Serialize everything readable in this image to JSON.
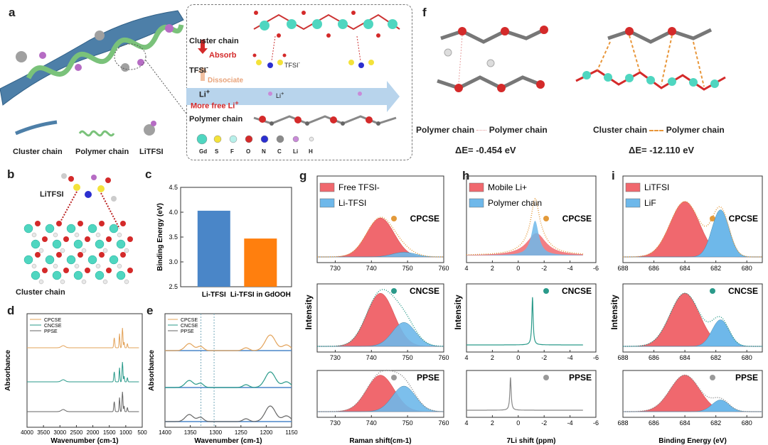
{
  "panels": {
    "a": "a",
    "b": "b",
    "c": "c",
    "d": "d",
    "e": "e",
    "f": "f",
    "g": "g",
    "h": "h",
    "i": "i"
  },
  "panel_a": {
    "legend_cluster": "Cluster chain",
    "legend_polymer": "Polymer chain",
    "legend_litfsi": "LiTFSI",
    "inset_cluster": "Cluster chain",
    "inset_absorb": "Absorb",
    "inset_tfsi": "TFSI",
    "inset_tfsi_sup": "-",
    "inset_tfsi_right": "TFSI",
    "inset_dissociate": "Dissociate",
    "inset_li": "Li",
    "inset_li_sup": "+",
    "inset_li_mid": "Li",
    "inset_more_free": "More free Li",
    "inset_polymer": "Polymer chain",
    "atoms": [
      "Gd",
      "S",
      "F",
      "O",
      "N",
      "C",
      "Li",
      "H"
    ],
    "atom_colors": [
      "#4fd6c0",
      "#f3e23a",
      "#b7f0ea",
      "#d42a2a",
      "#2b2fd0",
      "#8a8a8a",
      "#c98ad8",
      "#e8e8e8"
    ]
  },
  "panel_b": {
    "litfsi": "LiTFSI",
    "cluster": "Cluster chain"
  },
  "panel_c": {
    "chart_data": {
      "type": "bar",
      "categories": [
        "Li-TFSI",
        "Li-TFSI in GdOOH"
      ],
      "values": [
        4.03,
        3.47
      ],
      "colors": [
        "#4a86c8",
        "#ff7f0e"
      ],
      "ylabel": "Binding Energy (eV)",
      "ylim": [
        2.5,
        4.5
      ],
      "yticks": [
        "2.5",
        "3.0",
        "3.5",
        "4.0",
        "4.5"
      ]
    }
  },
  "panel_d": {
    "chart_data": {
      "type": "line",
      "series": [
        {
          "name": "CPCSE",
          "color": "#e3a35a"
        },
        {
          "name": "CNCSE",
          "color": "#2a9a8a"
        },
        {
          "name": "PPSE",
          "color": "#666666"
        }
      ],
      "xlabel": "Wavenumber (cm-1)",
      "ylabel": "Absorbance",
      "xticks": [
        "4000",
        "3500",
        "3000",
        "2500",
        "2000",
        "1500",
        "1000",
        "500"
      ],
      "xlim": [
        4000,
        500
      ]
    }
  },
  "panel_e": {
    "chart_data": {
      "type": "line",
      "series": [
        {
          "name": "CPCSE",
          "color": "#e3a35a"
        },
        {
          "name": "CNCSE",
          "color": "#2a9a8a"
        },
        {
          "name": "PPSE",
          "color": "#666666"
        }
      ],
      "xlabel": "Wavenumber (cm-1)",
      "ylabel": "Absorbance",
      "xticks": [
        "1400",
        "1350",
        "1300",
        "1250",
        "1200",
        "1150"
      ],
      "xlim": [
        1400,
        1150
      ]
    }
  },
  "panel_f": {
    "left_caption_a": "Polymer chain",
    "left_caption_b": "Polymer chain",
    "right_caption_a": "Cluster chain",
    "right_caption_b": "Polymer chain",
    "left_energy": "ΔE= -0.454 eV",
    "right_energy": "ΔE= -12.110 eV"
  },
  "panel_g": {
    "chart_data": {
      "type": "area",
      "legend": [
        {
          "name": "Free TFSI-",
          "color": "#f0686e"
        },
        {
          "name": "Li-TFSI",
          "color": "#6eb8ea"
        }
      ],
      "subplots": [
        "CPCSE",
        "CNCSE",
        "PPSE"
      ],
      "xticks": [
        "730",
        "740",
        "750",
        "760"
      ],
      "xlim": [
        725,
        760
      ],
      "xlabel": "Raman shift(cm-1)",
      "ylabel": "Intensity",
      "fits": [
        {
          "free_center": 742.5,
          "li_center": 749
        },
        {
          "free_center": 742.5,
          "li_center": 749
        },
        {
          "free_center": 742.5,
          "li_center": 749
        }
      ]
    }
  },
  "panel_h": {
    "chart_data": {
      "type": "line",
      "legend": [
        {
          "name": "Mobile Li+",
          "color": "#f0686e"
        },
        {
          "name": "Polymer chain",
          "color": "#6eb8ea"
        }
      ],
      "subplots": [
        "CPCSE",
        "CNCSE",
        "PPSE"
      ],
      "xticks": [
        "4",
        "2",
        "0",
        "-2",
        "-4",
        "-6"
      ],
      "xlim": [
        4,
        -6
      ],
      "xlabel": "7Li shift (ppm)",
      "ylabel": "Intensity",
      "peak_centers": [
        -1.4,
        -1.1,
        0.6
      ]
    }
  },
  "panel_i": {
    "chart_data": {
      "type": "area",
      "legend": [
        {
          "name": "LiTFSI",
          "color": "#f0686e"
        },
        {
          "name": "LiF",
          "color": "#6eb8ea"
        }
      ],
      "subplots": [
        "CPCSE",
        "CNCSE",
        "PPSE"
      ],
      "xticks": [
        "688",
        "686",
        "684",
        "682",
        "680"
      ],
      "xlim": [
        688,
        679
      ],
      "xlabel": "Binding Energy (eV)",
      "ylabel": "Intensity",
      "peak_centers": [
        684,
        681.7
      ]
    }
  }
}
